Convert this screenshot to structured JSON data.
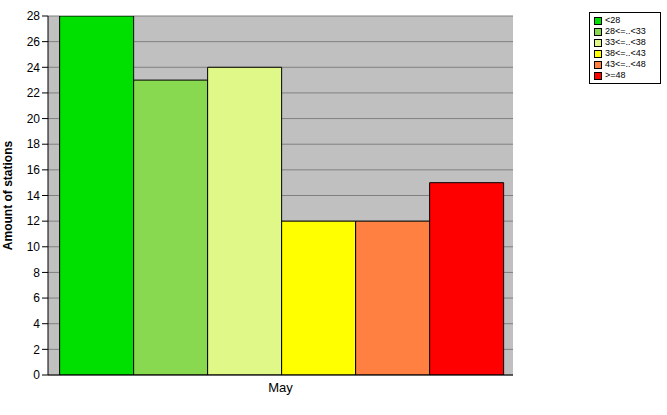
{
  "chart_data": {
    "type": "bar",
    "categories": [
      "May"
    ],
    "series": [
      {
        "name": "<28",
        "color": "#00e000",
        "values": [
          28
        ]
      },
      {
        "name": "28<=..<33",
        "color": "#88d850",
        "values": [
          23
        ]
      },
      {
        "name": "33<=..<38",
        "color": "#e0f888",
        "values": [
          24
        ]
      },
      {
        "name": "38<=..<43",
        "color": "#ffff00",
        "values": [
          12
        ]
      },
      {
        "name": "43<=..<48",
        "color": "#ff8040",
        "values": [
          12
        ]
      },
      {
        "name": ">=48",
        "color": "#ff0000",
        "values": [
          15
        ]
      }
    ],
    "ylabel": "Amount of stations",
    "ylim": [
      0,
      28
    ],
    "yticks": [
      0,
      2,
      4,
      6,
      8,
      10,
      12,
      14,
      16,
      18,
      20,
      22,
      24,
      26,
      28
    ],
    "grid": true,
    "legend": "top right"
  }
}
